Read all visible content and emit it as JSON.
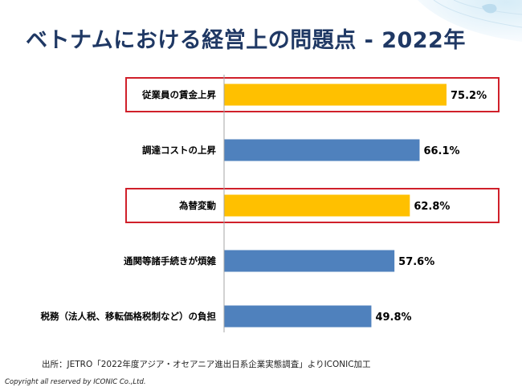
{
  "title": "ベトナムにおける経営上の問題点 - 2022年",
  "chart_data": {
    "type": "bar",
    "orientation": "horizontal",
    "categories": [
      "従業員の賃金上昇",
      "調達コストの上昇",
      "為替変動",
      "通関等諸手続きが煩雑",
      "税務（法人税、移転価格税制など）の負担"
    ],
    "values": [
      75.2,
      66.1,
      62.8,
      57.6,
      49.8
    ],
    "value_labels": [
      "75.2%",
      "66.1%",
      "62.8%",
      "57.6%",
      "49.8%"
    ],
    "highlighted": [
      true,
      false,
      true,
      false,
      false
    ],
    "xlim": [
      0,
      100
    ],
    "unit": "%",
    "grid": false,
    "legend": "none",
    "colors": {
      "default": "#4f81bd",
      "highlight": "#ffc000",
      "highlight_border": "#d0202a",
      "axis": "#a6a6a6"
    }
  },
  "footer": {
    "source": "出所：JETRO「2022年度アジア・オセアニア進出日系企業実態調査」よりICONIC加工",
    "copyright": "Copyright all reserved by ICONIC Co.,Ltd."
  }
}
